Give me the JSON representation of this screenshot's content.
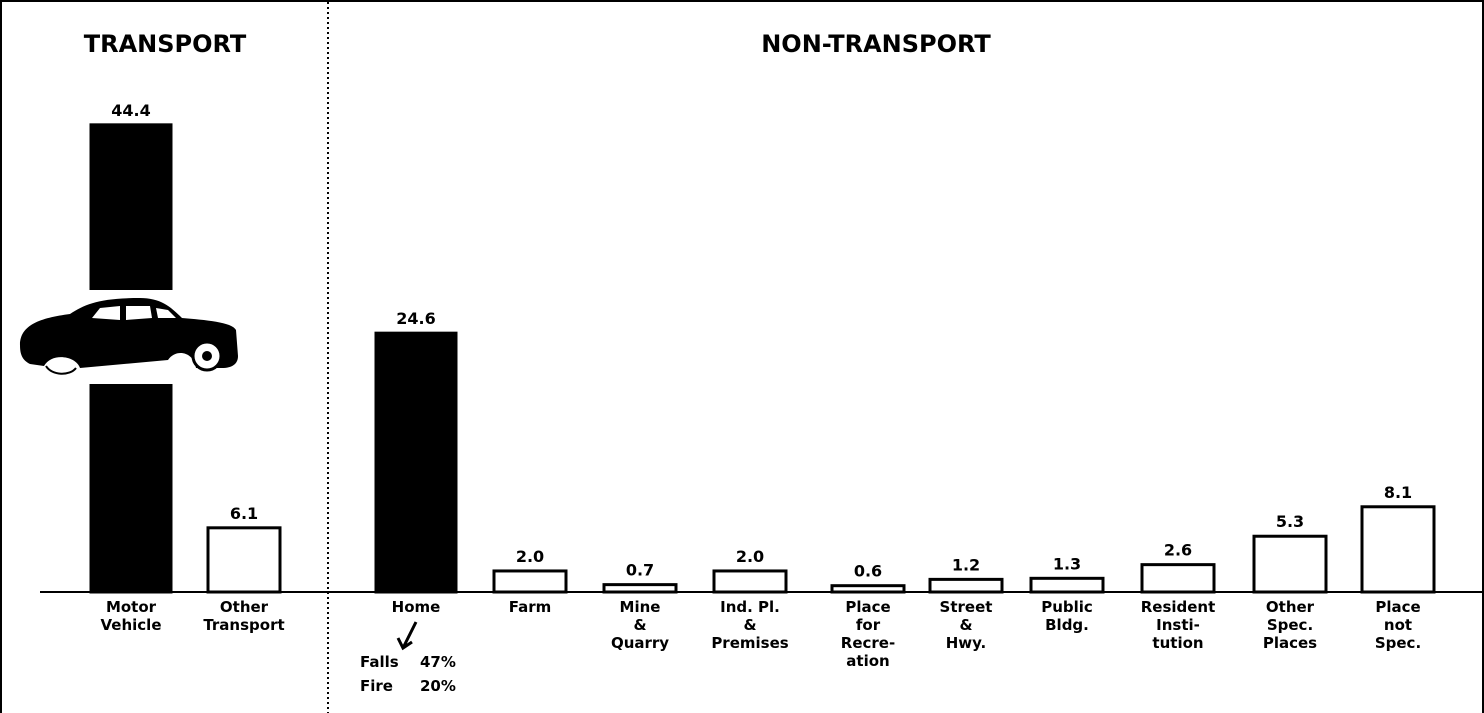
{
  "chart_data": [
    {
      "type": "bar",
      "title": "TRANSPORT",
      "categories": [
        [
          "Motor",
          "Vehicle"
        ],
        [
          "Other",
          "Transport"
        ]
      ],
      "values": [
        44.4,
        6.1
      ],
      "value_labels": [
        "44.4",
        "6.1"
      ],
      "colors": [
        "#000000",
        "#ffffff"
      ],
      "ylim": [
        0,
        46
      ]
    },
    {
      "type": "bar",
      "title": "NON-TRANSPORT",
      "categories": [
        [
          "Home"
        ],
        [
          "Farm"
        ],
        [
          "Mine",
          "&",
          "Quarry"
        ],
        [
          "Ind. Pl.",
          "&",
          "Premises"
        ],
        [
          "Place",
          "for",
          "Recre-",
          "ation"
        ],
        [
          "Street",
          "&",
          "Hwy."
        ],
        [
          "Public",
          "Bldg."
        ],
        [
          "Resident",
          "Insti-",
          "tution"
        ],
        [
          "Other",
          "Spec.",
          "Places"
        ],
        [
          "Place",
          "not",
          "Spec."
        ]
      ],
      "values": [
        24.6,
        2.0,
        0.7,
        2.0,
        0.6,
        1.2,
        1.3,
        2.6,
        5.3,
        8.1
      ],
      "value_labels": [
        "24.6",
        "2.0",
        "0.7",
        "2.0",
        "0.6",
        "1.2",
        "1.3",
        "2.6",
        "5.3",
        "8.1"
      ],
      "colors": [
        "#000000",
        "#ffffff",
        "#ffffff",
        "#ffffff",
        "#ffffff",
        "#ffffff",
        "#ffffff",
        "#ffffff",
        "#ffffff",
        "#ffffff"
      ],
      "ylim": [
        0,
        46
      ],
      "annotations": [
        [
          "Falls",
          "47%"
        ],
        [
          "Fire",
          "20%"
        ]
      ]
    }
  ]
}
